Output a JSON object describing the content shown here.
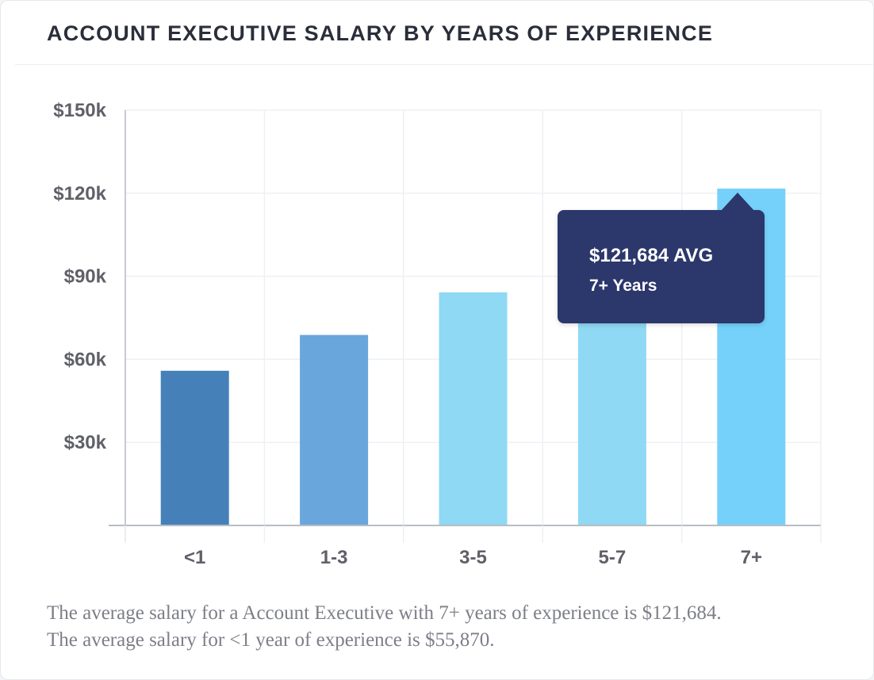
{
  "title": "ACCOUNT EXECUTIVE SALARY BY YEARS OF EXPERIENCE",
  "chart_data": {
    "type": "bar",
    "title": "ACCOUNT EXECUTIVE SALARY BY YEARS OF EXPERIENCE",
    "categories": [
      "<1",
      "1-3",
      "3-5",
      "5-7",
      "7+"
    ],
    "values": [
      55870,
      68800,
      84200,
      84200,
      121684
    ],
    "colors": [
      "#4580b9",
      "#69a6dc",
      "#8fd9f4",
      "#8fd9f4",
      "#75d1fa"
    ],
    "ylim": [
      0,
      150000
    ],
    "yticks": [
      30000,
      60000,
      90000,
      120000,
      150000
    ],
    "ytick_labels": [
      "$30k",
      "$60k",
      "$90k",
      "$120k",
      "$150k"
    ],
    "xlabel": "",
    "ylabel": "",
    "grid": true,
    "tooltip": {
      "value": "$121,684 AVG",
      "label": "7+ Years",
      "category": "7+",
      "color": "#2c376b"
    }
  },
  "caption": {
    "line1": "The average salary for a Account Executive with 7+ years of experience is $121,684.",
    "line2": "The average salary for <1 year of experience is $55,870."
  }
}
